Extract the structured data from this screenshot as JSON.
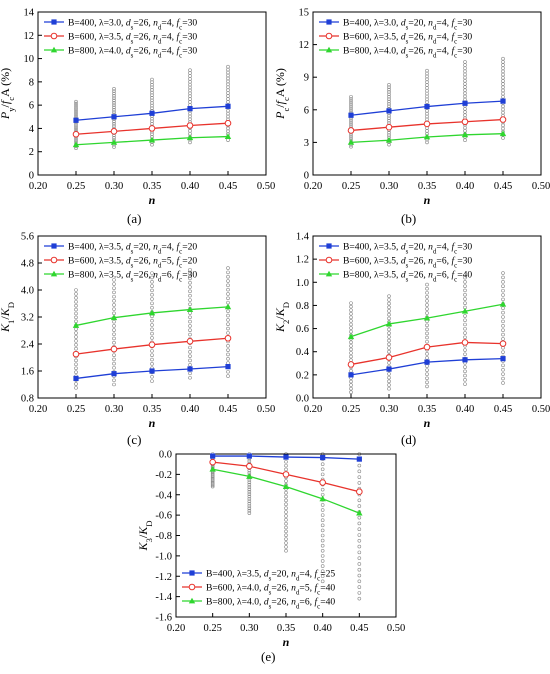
{
  "panel_labels": [
    "(a)",
    "(b)",
    "(c)",
    "(d)",
    "(e)"
  ],
  "colors": {
    "series1": "#1f3fd6",
    "series2": "#e8332c",
    "series3": "#2fd62f",
    "scatter": "#8a8a8a",
    "axis": "#000000"
  },
  "chart_data": [
    {
      "type": "line",
      "panel": "(a)",
      "xlabel": "n",
      "ylabel": "P_y/f_cA (%)",
      "xlim": [
        0.2,
        0.5
      ],
      "ylim": [
        0,
        14
      ],
      "xticks": [
        "0.20",
        "0.25",
        "0.30",
        "0.35",
        "0.40",
        "0.45",
        "0.50"
      ],
      "yticks": [
        "0",
        "2",
        "4",
        "6",
        "8",
        "10",
        "12",
        "14"
      ],
      "x": [
        0.25,
        0.3,
        0.35,
        0.4,
        0.45
      ],
      "series": [
        {
          "name": "B=400, λ=3.0, d_s=26, n_d=4, f_c=30",
          "marker": "square",
          "values": [
            4.7,
            5.0,
            5.3,
            5.7,
            5.9
          ]
        },
        {
          "name": "B=600, λ=3.5, d_s=26, n_d=4, f_c=30",
          "marker": "circle",
          "values": [
            3.5,
            3.75,
            4.0,
            4.25,
            4.45
          ]
        },
        {
          "name": "B=800, λ=4.0, d_s=26, n_d=4, f_c=30",
          "marker": "triangle",
          "values": [
            2.6,
            2.8,
            3.0,
            3.2,
            3.3
          ]
        }
      ],
      "scatter_range": [
        [
          2.3,
          6.3
        ],
        [
          2.4,
          7.4
        ],
        [
          2.6,
          8.2
        ],
        [
          2.8,
          9.0
        ],
        [
          3.0,
          9.3
        ]
      ]
    },
    {
      "type": "line",
      "panel": "(b)",
      "xlabel": "n",
      "ylabel": "P_c/f_cA (%)",
      "xlim": [
        0.2,
        0.5
      ],
      "ylim": [
        0,
        15
      ],
      "xticks": [
        "0.20",
        "0.25",
        "0.30",
        "0.35",
        "0.40",
        "0.45",
        "0.50"
      ],
      "yticks": [
        "0",
        "3",
        "6",
        "9",
        "12",
        "15"
      ],
      "x": [
        0.25,
        0.3,
        0.35,
        0.4,
        0.45
      ],
      "series": [
        {
          "name": "B=400, λ=3.0, d_s=20, n_d=4, f_c=30",
          "marker": "square",
          "values": [
            5.5,
            5.9,
            6.3,
            6.6,
            6.8
          ]
        },
        {
          "name": "B=600, λ=3.5, d_s=26, n_d=4, f_c=30",
          "marker": "circle",
          "values": [
            4.1,
            4.4,
            4.7,
            4.9,
            5.1
          ]
        },
        {
          "name": "B=800, λ=4.0, d_s=26, n_d=4, f_c=30",
          "marker": "triangle",
          "values": [
            3.0,
            3.2,
            3.5,
            3.7,
            3.8
          ]
        }
      ],
      "scatter_range": [
        [
          2.6,
          7.2
        ],
        [
          2.8,
          8.3
        ],
        [
          3.0,
          9.6
        ],
        [
          3.2,
          10.4
        ],
        [
          3.4,
          10.7
        ]
      ]
    },
    {
      "type": "line",
      "panel": "(c)",
      "xlabel": "n",
      "ylabel": "K_1/K_D",
      "xlim": [
        0.2,
        0.5
      ],
      "ylim": [
        0.8,
        5.6
      ],
      "xticks": [
        "0.20",
        "0.25",
        "0.30",
        "0.35",
        "0.40",
        "0.45",
        "0.50"
      ],
      "yticks": [
        "0.8",
        "1.6",
        "2.4",
        "3.2",
        "4.0",
        "4.8",
        "5.6"
      ],
      "x": [
        0.25,
        0.3,
        0.35,
        0.4,
        0.45
      ],
      "series": [
        {
          "name": "B=400, λ=3.5, d_s=20, n_d=4, f_c=20",
          "marker": "square",
          "values": [
            1.38,
            1.52,
            1.6,
            1.66,
            1.73
          ]
        },
        {
          "name": "B=600, λ=3.5, d_s=26, n_d=5, f_c=20",
          "marker": "circle",
          "values": [
            2.1,
            2.25,
            2.38,
            2.48,
            2.57
          ]
        },
        {
          "name": "B=800, λ=3.5, d_s=26, n_d=6, f_c=30",
          "marker": "triangle",
          "values": [
            2.95,
            3.18,
            3.32,
            3.42,
            3.5
          ]
        }
      ],
      "scatter_range": [
        [
          1.1,
          4.0
        ],
        [
          1.2,
          4.3
        ],
        [
          1.3,
          4.5
        ],
        [
          1.4,
          4.6
        ],
        [
          1.45,
          4.65
        ]
      ]
    },
    {
      "type": "line",
      "panel": "(d)",
      "xlabel": "n",
      "ylabel": "K_2/K_D",
      "xlim": [
        0.2,
        0.5
      ],
      "ylim": [
        0.0,
        1.4
      ],
      "xticks": [
        "0.20",
        "0.25",
        "0.30",
        "0.35",
        "0.40",
        "0.45",
        "0.50"
      ],
      "yticks": [
        "0.0",
        "0.2",
        "0.4",
        "0.6",
        "0.8",
        "1.0",
        "1.2",
        "1.4"
      ],
      "x": [
        0.25,
        0.3,
        0.35,
        0.4,
        0.45
      ],
      "series": [
        {
          "name": "B=400, λ=3.5, d_s=20, n_d=4, f_c=30",
          "marker": "square",
          "values": [
            0.2,
            0.25,
            0.31,
            0.33,
            0.34
          ]
        },
        {
          "name": "B=600, λ=3.5, d_s=26, n_d=6, f_c=30",
          "marker": "circle",
          "values": [
            0.29,
            0.35,
            0.44,
            0.48,
            0.47
          ]
        },
        {
          "name": "B=800, λ=3.5, d_s=26, n_d=6, f_c=40",
          "marker": "triangle",
          "values": [
            0.53,
            0.64,
            0.69,
            0.75,
            0.81
          ]
        }
      ],
      "scatter_range": [
        [
          0.05,
          0.82
        ],
        [
          0.08,
          0.88
        ],
        [
          0.1,
          0.98
        ],
        [
          0.12,
          1.04
        ],
        [
          0.13,
          1.08
        ]
      ]
    },
    {
      "type": "line",
      "panel": "(e)",
      "xlabel": "n",
      "ylabel": "K_3/K_D",
      "xlim": [
        0.2,
        0.5
      ],
      "ylim": [
        -1.6,
        0.0
      ],
      "xticks": [
        "0.20",
        "0.25",
        "0.30",
        "0.35",
        "0.40",
        "0.45",
        "0.50"
      ],
      "yticks": [
        "0.0",
        "-0.2",
        "-0.4",
        "-0.6",
        "-0.8",
        "-1.0",
        "-1.2",
        "-1.4",
        "-1.6"
      ],
      "x": [
        0.25,
        0.3,
        0.35,
        0.4,
        0.45
      ],
      "series": [
        {
          "name": "B=400, λ=3.5, d_s=20, n_d=4, f_c=25",
          "marker": "square",
          "values": [
            -0.02,
            -0.02,
            -0.03,
            -0.035,
            -0.05
          ]
        },
        {
          "name": "B=600, λ=4.0, d_s=26, n_d=5, f_c=40",
          "marker": "circle",
          "values": [
            -0.08,
            -0.12,
            -0.2,
            -0.28,
            -0.37
          ]
        },
        {
          "name": "B=800, λ=4.0, d_s=26, n_d=6, f_c=40",
          "marker": "triangle",
          "values": [
            -0.15,
            -0.22,
            -0.32,
            -0.44,
            -0.58
          ]
        }
      ],
      "scatter_range": [
        [
          -0.32,
          0.0
        ],
        [
          -0.58,
          0.0
        ],
        [
          -0.95,
          0.0
        ],
        [
          -1.25,
          0.0
        ],
        [
          -1.42,
          0.0
        ]
      ]
    }
  ]
}
